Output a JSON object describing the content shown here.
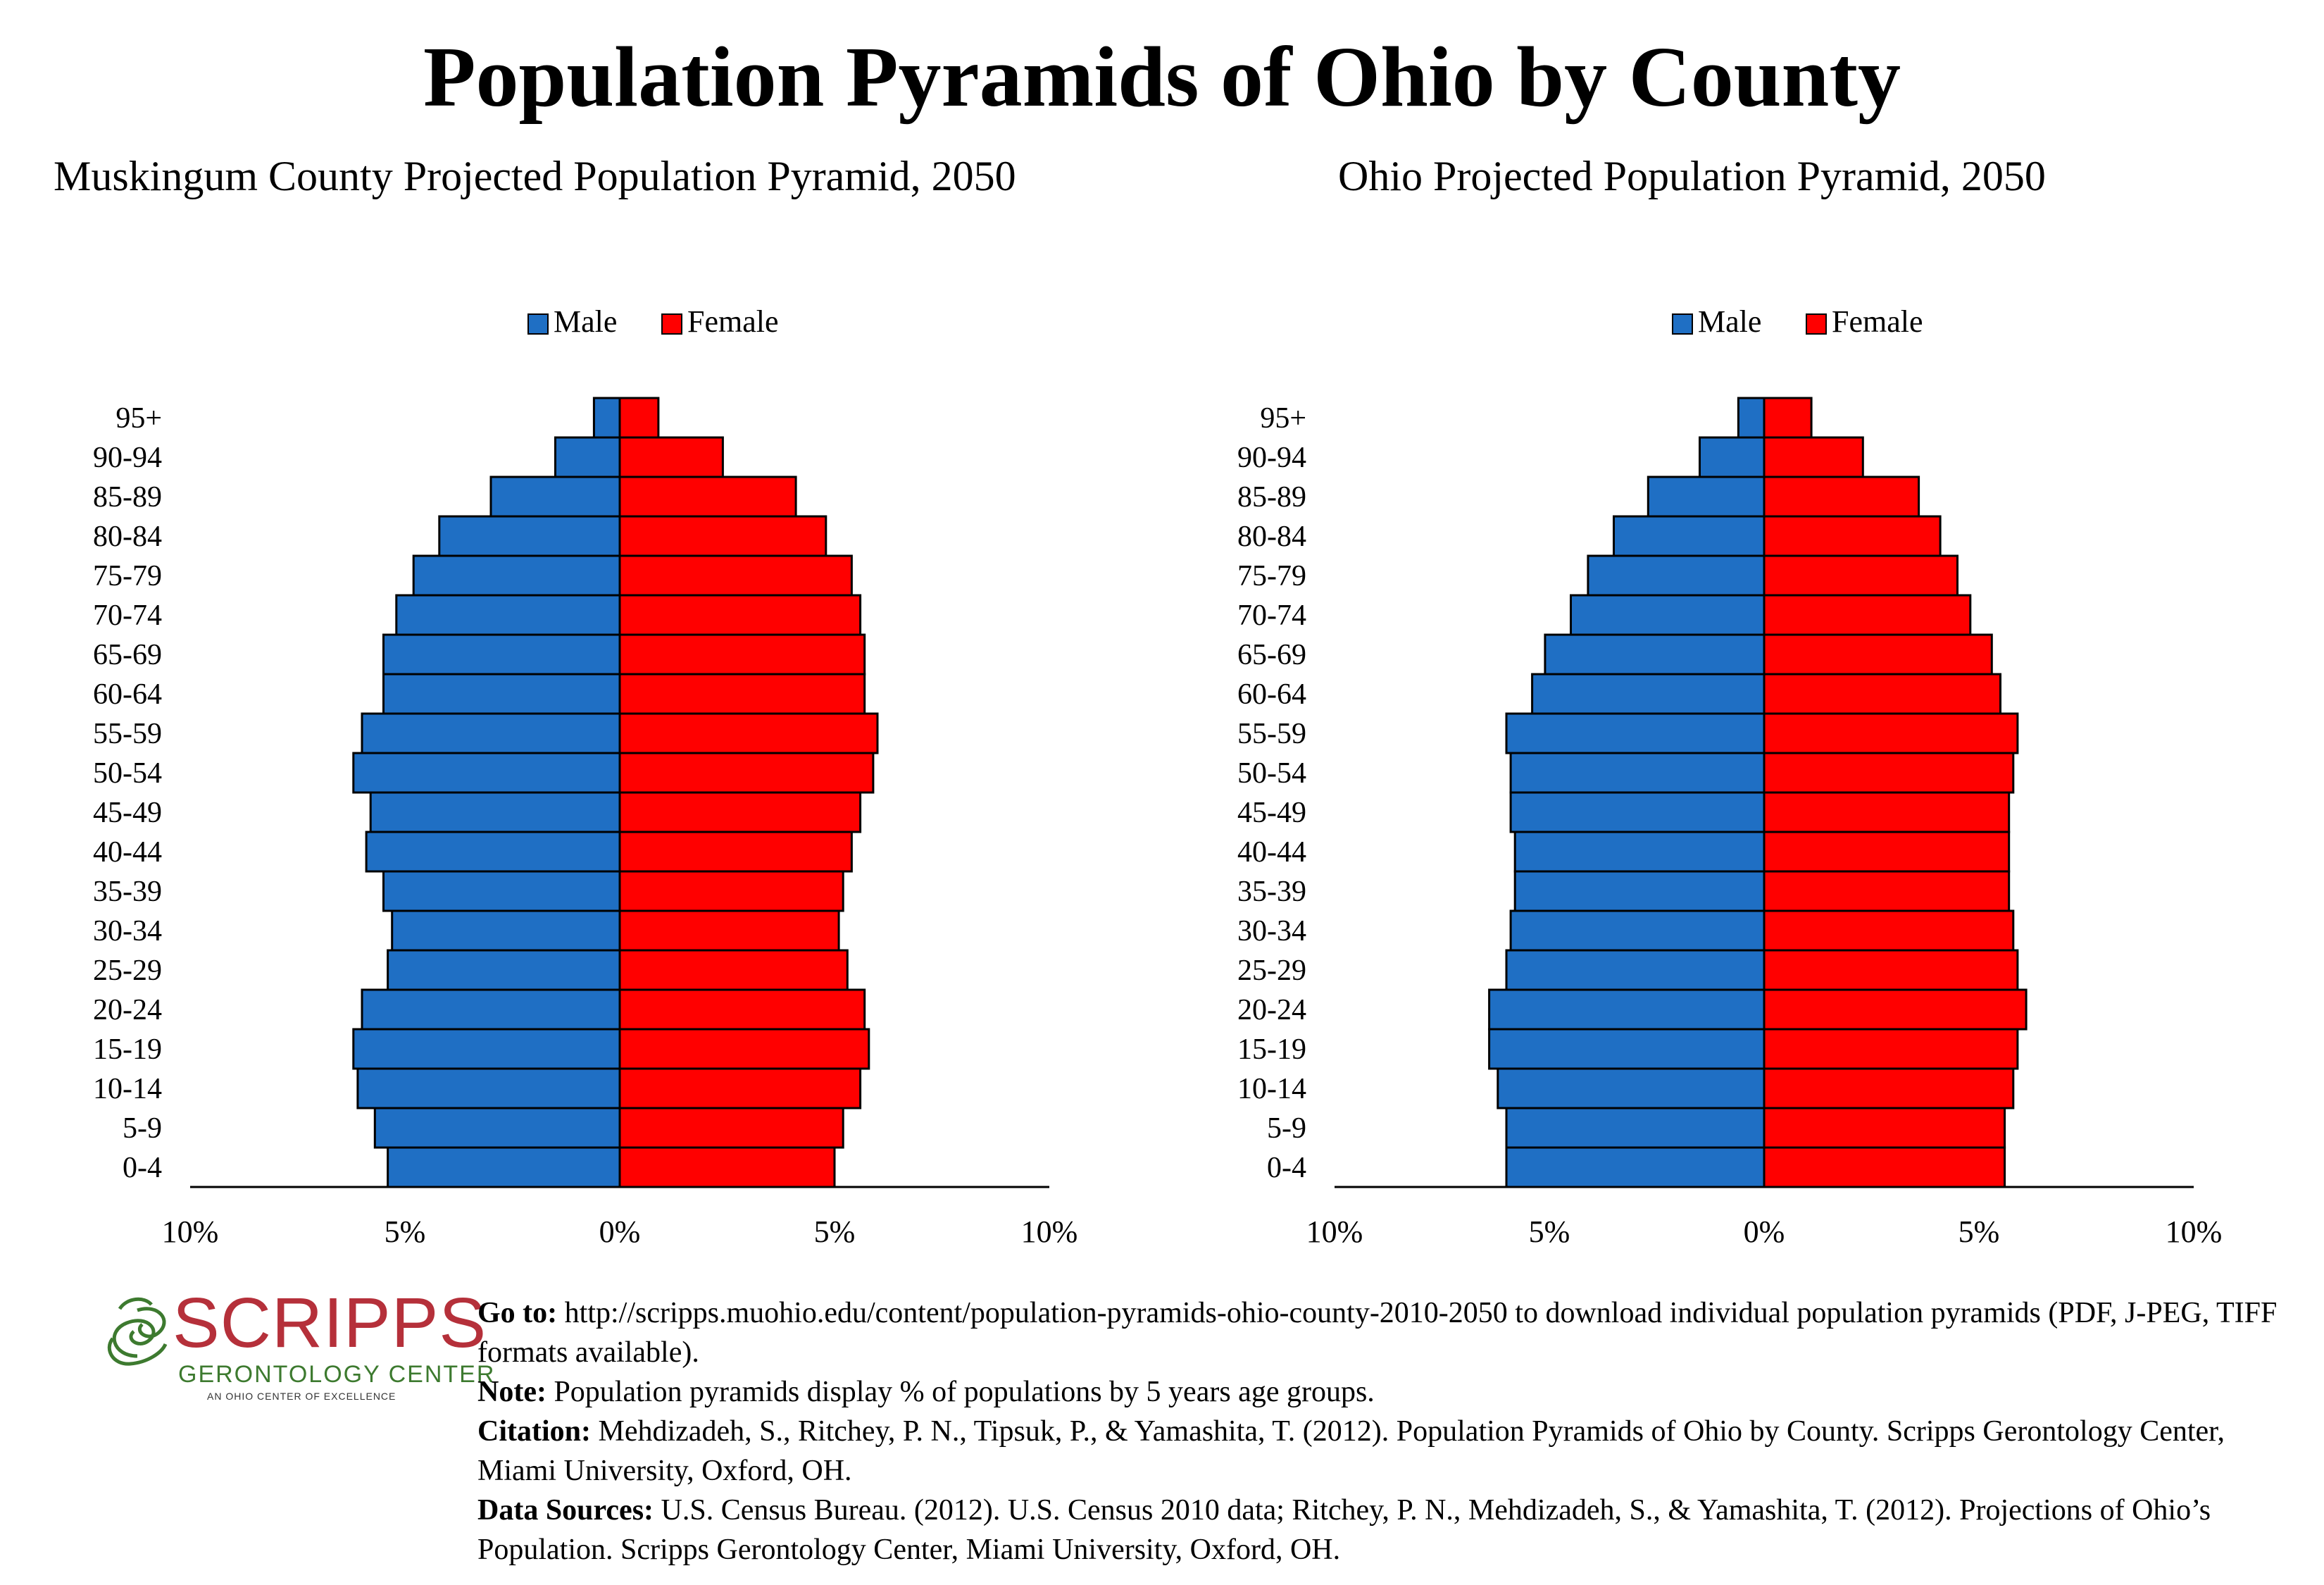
{
  "page": {
    "title": "Population Pyramids of Ohio by County"
  },
  "legend": {
    "male": "Male",
    "female": "Female"
  },
  "colors": {
    "male": "#1f6fc4",
    "female": "#ff0000",
    "outline": "#000000"
  },
  "chart_data": [
    {
      "type": "bar",
      "orientation": "horizontal-pyramid",
      "title": "Muskingum County Projected Population Pyramid, 2050",
      "title_visible": "Muskingum County Projected Population Pyramid, 2050",
      "categories": [
        "0-4",
        "5-9",
        "10-14",
        "15-19",
        "20-24",
        "25-29",
        "30-34",
        "35-39",
        "40-44",
        "45-49",
        "50-54",
        "55-59",
        "60-64",
        "65-69",
        "70-74",
        "75-79",
        "80-84",
        "85-89",
        "90-94",
        "95+"
      ],
      "series": [
        {
          "name": "Male",
          "values": [
            5.4,
            5.7,
            6.1,
            6.2,
            6.0,
            5.4,
            5.3,
            5.5,
            5.9,
            5.8,
            6.2,
            6.0,
            5.5,
            5.5,
            5.2,
            4.8,
            4.2,
            3.0,
            1.5,
            0.6
          ]
        },
        {
          "name": "Female",
          "values": [
            5.0,
            5.2,
            5.6,
            5.8,
            5.7,
            5.3,
            5.1,
            5.2,
            5.4,
            5.6,
            5.9,
            6.0,
            5.7,
            5.7,
            5.6,
            5.4,
            4.8,
            4.1,
            2.4,
            0.9
          ]
        }
      ],
      "xlim": [
        -10,
        10
      ],
      "ticks": [
        "10%",
        "5%",
        "0%",
        "5%",
        "10%"
      ],
      "legend_position": "top-center",
      "grid": false
    },
    {
      "type": "bar",
      "orientation": "horizontal-pyramid",
      "title": "Ohio Projected Population Pyramid, 2050",
      "title_visible": "Ohio Projected Population Pyramid, 2050",
      "categories": [
        "0-4",
        "5-9",
        "10-14",
        "15-19",
        "20-24",
        "25-29",
        "30-34",
        "35-39",
        "40-44",
        "45-49",
        "50-54",
        "55-59",
        "60-64",
        "65-69",
        "70-74",
        "75-79",
        "80-84",
        "85-89",
        "90-94",
        "95+"
      ],
      "series": [
        {
          "name": "Male",
          "values": [
            6.0,
            6.0,
            6.2,
            6.4,
            6.4,
            6.0,
            5.9,
            5.8,
            5.8,
            5.9,
            5.9,
            6.0,
            5.4,
            5.1,
            4.5,
            4.1,
            3.5,
            2.7,
            1.5,
            0.6
          ]
        },
        {
          "name": "Female",
          "values": [
            5.6,
            5.6,
            5.8,
            5.9,
            6.1,
            5.9,
            5.8,
            5.7,
            5.7,
            5.7,
            5.8,
            5.9,
            5.5,
            5.3,
            4.8,
            4.5,
            4.1,
            3.6,
            2.3,
            1.1
          ]
        }
      ],
      "xlim": [
        -10,
        10
      ],
      "ticks": [
        "10%",
        "5%",
        "0%",
        "5%",
        "10%"
      ],
      "legend_position": "top-center",
      "grid": false
    }
  ],
  "footer": {
    "logo_word": "SCRIPPS",
    "logo_sub": "GERONTOLOGY CENTER",
    "logo_tag": "AN OHIO CENTER OF EXCELLENCE",
    "goto_label": "Go to:",
    "goto_text": " http://scripps.muohio.edu/content/population-pyramids-ohio-county-2010-2050 to download individual population pyramids (PDF, J-PEG, TIFF formats available).",
    "note_label": "Note:",
    "note_text": " Population pyramids display % of populations by 5 years age groups.",
    "citation_label": "Citation:",
    "citation_text": " Mehdizadeh, S., Ritchey, P. N., Tipsuk, P., & Yamashita, T. (2012). Population Pyramids of Ohio by County. Scripps Gerontology Center, Miami University, Oxford, OH.",
    "sources_label": "Data Sources:",
    "sources_text": " U.S. Census Bureau. (2012). U.S. Census 2010 data; Ritchey, P. N., Mehdizadeh, S., & Yamashita, T. (2012). Projections of Ohio’s Population. Scripps Gerontology Center, Miami University, Oxford, OH."
  }
}
